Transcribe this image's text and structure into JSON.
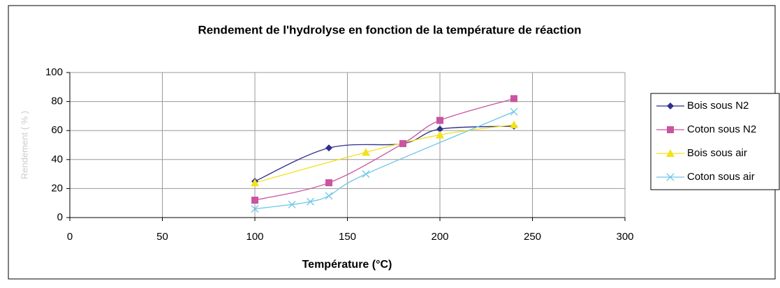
{
  "chart_data": {
    "type": "line",
    "title": "Rendement de l'hydrolyse en fonction de la température de réaction",
    "xlabel": "Température (°C)",
    "ylabel": "Rendement ( % )",
    "xlim": [
      0,
      300
    ],
    "xticks": [
      0,
      50,
      100,
      150,
      200,
      250,
      300
    ],
    "ylim": [
      0,
      100
    ],
    "yticks": [
      0,
      20,
      40,
      60,
      80,
      100
    ],
    "grid": true,
    "smooth": true,
    "legend": "right",
    "series": [
      {
        "name": "Bois sous  N2",
        "color": "#2e2f8c",
        "marker": "diamond",
        "x": [
          100,
          140,
          180,
          200,
          240
        ],
        "values": [
          25,
          48,
          51,
          61,
          63
        ]
      },
      {
        "name": "Coton sous N2",
        "color": "#c9549f",
        "marker": "square",
        "x": [
          100,
          140,
          180,
          200,
          240
        ],
        "values": [
          12,
          24,
          51,
          67,
          82
        ]
      },
      {
        "name": "Bois sous air",
        "color": "#f2e21a",
        "marker": "triangle",
        "x": [
          100,
          160,
          200,
          240
        ],
        "values": [
          24,
          45,
          57,
          64
        ]
      },
      {
        "name": "Coton sous air",
        "color": "#6cc6e8",
        "marker": "x",
        "x": [
          100,
          120,
          130,
          140,
          160,
          240
        ],
        "values": [
          6,
          9,
          11,
          15,
          30,
          73
        ]
      }
    ]
  }
}
